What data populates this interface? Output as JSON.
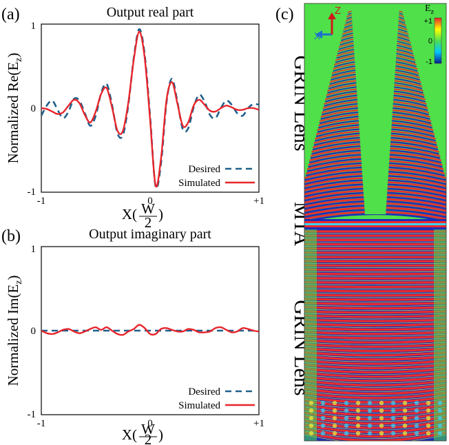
{
  "panels": {
    "a": {
      "label": "(a)",
      "chart_data": {
        "type": "line",
        "title": "Output real part",
        "xlabel": "X(W/2)",
        "xlabel_parts": {
          "prefix": "X(",
          "num": "W",
          "den": "2",
          "suffix": ")"
        },
        "ylabel": "Normalized Re(E",
        "ylabel_sub": "z",
        "ylabel_close": ")",
        "xlim": [
          -1,
          1
        ],
        "ylim": [
          -1,
          1
        ],
        "xticks": [
          "-1",
          "0",
          "+1"
        ],
        "yticks": [
          "1",
          "0",
          "-1"
        ],
        "legend_position": "bottom-right",
        "series": [
          {
            "name": "Desired",
            "style": "dashed",
            "color": "#1f5f8b",
            "x": [
              -1.0,
              -0.95,
              -0.9,
              -0.85,
              -0.8,
              -0.75,
              -0.7,
              -0.65,
              -0.6,
              -0.55,
              -0.5,
              -0.45,
              -0.4,
              -0.35,
              -0.3,
              -0.25,
              -0.2,
              -0.15,
              -0.1,
              -0.05,
              0.0,
              0.05,
              0.1,
              0.15,
              0.2,
              0.25,
              0.3,
              0.35,
              0.4,
              0.45,
              0.5,
              0.55,
              0.6,
              0.65,
              0.7,
              0.75,
              0.8,
              0.85,
              0.9,
              0.95,
              1.0
            ],
            "y": [
              -0.09,
              0.03,
              0.09,
              -0.02,
              -0.12,
              -0.04,
              0.11,
              0.09,
              -0.06,
              -0.21,
              -0.09,
              0.18,
              0.29,
              0.04,
              -0.3,
              -0.32,
              0.04,
              0.6,
              0.94,
              0.64,
              -0.1,
              -0.93,
              -0.66,
              0.06,
              0.35,
              0.08,
              -0.25,
              -0.24,
              0.01,
              0.16,
              0.08,
              -0.08,
              -0.12,
              0.0,
              0.09,
              0.04,
              -0.06,
              -0.09,
              0.0,
              0.05,
              0.04
            ]
          },
          {
            "name": "Simulated",
            "style": "solid",
            "color": "#e8242b",
            "x": [
              -1.0,
              -0.95,
              -0.9,
              -0.85,
              -0.8,
              -0.75,
              -0.7,
              -0.65,
              -0.6,
              -0.55,
              -0.5,
              -0.45,
              -0.4,
              -0.35,
              -0.3,
              -0.25,
              -0.2,
              -0.15,
              -0.1,
              -0.05,
              0.0,
              0.05,
              0.1,
              0.15,
              0.2,
              0.25,
              0.3,
              0.35,
              0.4,
              0.45,
              0.5,
              0.55,
              0.6,
              0.65,
              0.7,
              0.75,
              0.8,
              0.85,
              0.9,
              0.95,
              1.0
            ],
            "y": [
              0.0,
              -0.01,
              -0.04,
              -0.07,
              -0.05,
              0.03,
              0.1,
              0.06,
              -0.08,
              -0.17,
              -0.04,
              0.17,
              0.24,
              0.01,
              -0.27,
              -0.27,
              0.07,
              0.58,
              0.91,
              0.6,
              -0.14,
              -0.92,
              -0.6,
              0.09,
              0.31,
              0.06,
              -0.21,
              -0.17,
              0.03,
              0.1,
              0.04,
              -0.03,
              -0.04,
              0.0,
              0.03,
              0.01,
              -0.02,
              -0.02,
              0.0,
              0.0,
              -0.02
            ]
          }
        ]
      }
    },
    "b": {
      "label": "(b)",
      "chart_data": {
        "type": "line",
        "title": "Output imaginary part",
        "xlabel": "X(W/2)",
        "xlabel_parts": {
          "prefix": "X(",
          "num": "W",
          "den": "2",
          "suffix": ")"
        },
        "ylabel": "Normalized Im(E",
        "ylabel_sub": "z",
        "ylabel_close": ")",
        "xlim": [
          -1,
          1
        ],
        "ylim": [
          -1,
          1
        ],
        "xticks": [
          "-1",
          "0",
          "+1"
        ],
        "yticks": [
          "1",
          "0",
          "-1"
        ],
        "legend_position": "bottom-right",
        "series": [
          {
            "name": "Desired",
            "style": "dashed",
            "color": "#1f5f8b",
            "x": [
              -1.0,
              1.0
            ],
            "y": [
              0.0,
              0.0
            ]
          },
          {
            "name": "Simulated",
            "style": "solid",
            "color": "#e8242b",
            "x": [
              -1.0,
              -0.95,
              -0.9,
              -0.85,
              -0.8,
              -0.75,
              -0.7,
              -0.65,
              -0.6,
              -0.55,
              -0.5,
              -0.45,
              -0.4,
              -0.35,
              -0.3,
              -0.25,
              -0.2,
              -0.15,
              -0.1,
              -0.05,
              0.0,
              0.05,
              0.1,
              0.15,
              0.2,
              0.25,
              0.3,
              0.35,
              0.4,
              0.45,
              0.5,
              0.55,
              0.6,
              0.65,
              0.7,
              0.75,
              0.8,
              0.85,
              0.9,
              0.95,
              1.0
            ],
            "y": [
              0.0,
              -0.03,
              -0.04,
              -0.02,
              0.01,
              0.02,
              -0.01,
              -0.03,
              -0.01,
              0.02,
              0.04,
              0.01,
              0.04,
              0.0,
              -0.04,
              -0.05,
              -0.01,
              0.02,
              0.07,
              0.03,
              -0.04,
              -0.04,
              0.02,
              0.03,
              0.01,
              -0.01,
              -0.01,
              0.02,
              0.01,
              -0.02,
              -0.02,
              -0.01,
              0.03,
              0.04,
              0.01,
              -0.02,
              -0.01,
              0.03,
              0.02,
              0.0,
              -0.01
            ]
          }
        ]
      }
    },
    "c": {
      "label": "(c)",
      "axis_z": "Z",
      "axis_x": "X",
      "colorbar": {
        "title": "E",
        "title_sub": "z",
        "max_label": "+1",
        "mid_label": "0",
        "min_label": "-1",
        "colors": [
          "#0a1a8c",
          "#00c8ff",
          "#50e050",
          "#ffff00",
          "#e8242b"
        ]
      },
      "regions": [
        {
          "label": "GRIN Lens"
        },
        {
          "label": "MTA"
        },
        {
          "label": "GRIN Lens"
        }
      ],
      "field_colors": {
        "background": "#4fe04a",
        "red": "#ee2a2a",
        "blue": "#1c2fb8",
        "cyan": "#35d5ff",
        "yellow": "#f2f23a"
      }
    }
  }
}
